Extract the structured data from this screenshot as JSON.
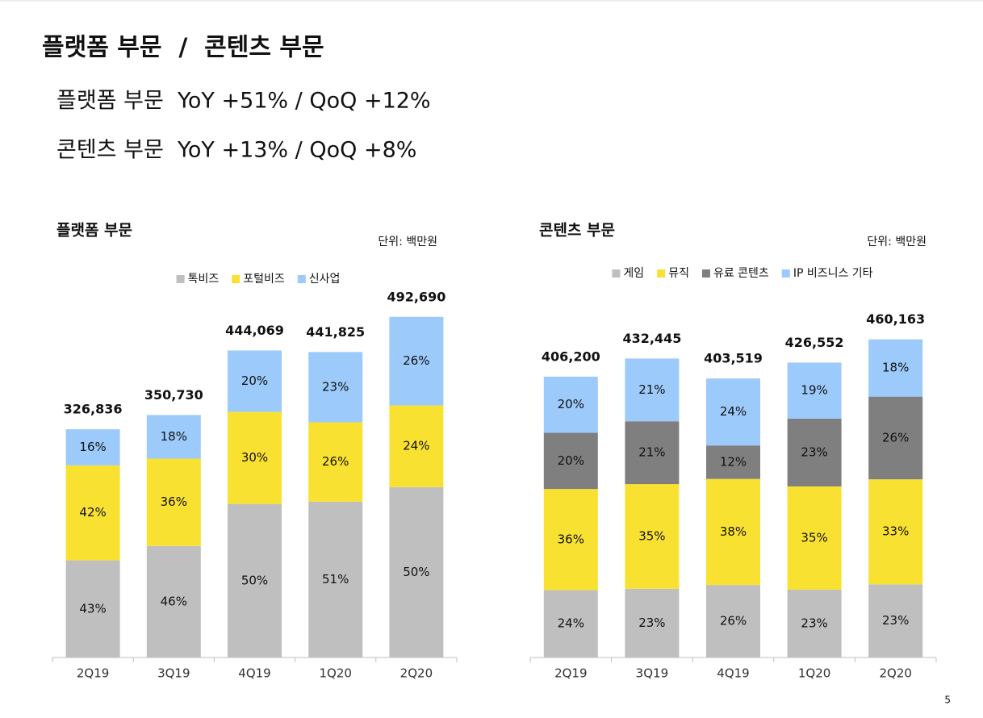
{
  "header": {
    "title": "플랫폼 부문  /  콘텐츠 부문",
    "lines": [
      "플랫폼 부문  YoY +51% / QoQ +12%",
      "콘텐츠 부문  YoY +13% / QoQ +8%"
    ]
  },
  "page_number": "5",
  "chart_data": [
    {
      "type": "bar",
      "stacked": true,
      "title": "플랫폼 부문",
      "unit": "단위: 백만원",
      "categories": [
        "2Q19",
        "3Q19",
        "4Q19",
        "1Q20",
        "2Q20"
      ],
      "totals": {
        "values": [
          326836,
          350730,
          444069,
          441825,
          492690
        ],
        "value_labels": [
          "326,836",
          "350,730",
          "444,069",
          "441,825",
          "492,690"
        ]
      },
      "series": [
        {
          "name": "톡비즈",
          "color": "#bfbfbf",
          "values": [
            43,
            46,
            50,
            51,
            50
          ],
          "value_labels": [
            "43%",
            "46%",
            "50%",
            "51%",
            "50%"
          ]
        },
        {
          "name": "포털비즈",
          "color": "#f9e132",
          "values": [
            42,
            36,
            30,
            26,
            24
          ],
          "value_labels": [
            "42%",
            "36%",
            "30%",
            "26%",
            "24%"
          ]
        },
        {
          "name": "신사업",
          "color": "#9ccafa",
          "values": [
            16,
            18,
            20,
            23,
            26
          ],
          "value_labels": [
            "16%",
            "18%",
            "20%",
            "23%",
            "26%"
          ]
        }
      ]
    },
    {
      "type": "bar",
      "stacked": true,
      "title": "콘텐츠 부문",
      "unit": "단위: 백만원",
      "categories": [
        "2Q19",
        "3Q19",
        "4Q19",
        "1Q20",
        "2Q20"
      ],
      "totals": {
        "values": [
          406200,
          432445,
          403519,
          426552,
          460163
        ],
        "value_labels": [
          "406,200",
          "432,445",
          "403,519",
          "426,552",
          "460,163"
        ]
      },
      "series": [
        {
          "name": "게임",
          "color": "#bfbfbf",
          "values": [
            24,
            23,
            26,
            23,
            23
          ],
          "value_labels": [
            "24%",
            "23%",
            "26%",
            "23%",
            "23%"
          ]
        },
        {
          "name": "뮤직",
          "color": "#f9e132",
          "values": [
            36,
            35,
            38,
            35,
            33
          ],
          "value_labels": [
            "36%",
            "35%",
            "38%",
            "35%",
            "33%"
          ]
        },
        {
          "name": "유료 콘텐츠",
          "color": "#7f7f7f",
          "values": [
            20,
            21,
            12,
            23,
            26
          ],
          "value_labels": [
            "20%",
            "21%",
            "12%",
            "23%",
            "26%"
          ]
        },
        {
          "name": "IP 비즈니스 기타",
          "color": "#9ccafa",
          "values": [
            20,
            21,
            24,
            19,
            18
          ],
          "value_labels": [
            "20%",
            "21%",
            "24%",
            "19%",
            "18%"
          ]
        }
      ]
    }
  ]
}
